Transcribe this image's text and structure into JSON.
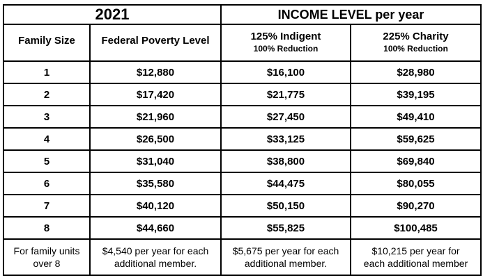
{
  "page": {
    "year_header": "2021",
    "income_header": "INCOME LEVEL per year",
    "columns": {
      "family_size": "Family Size",
      "poverty_level": "Federal Poverty Level",
      "indigent_title": "125% Indigent",
      "indigent_subtitle": "100% Reduction",
      "charity_title": "225% Charity",
      "charity_subtitle": "100% Reduction"
    },
    "rows": [
      {
        "family_size": "1",
        "poverty_level": "$12,880",
        "indigent": "$16,100",
        "charity": "$28,980"
      },
      {
        "family_size": "2",
        "poverty_level": "$17,420",
        "indigent": "$21,775",
        "charity": "$39,195"
      },
      {
        "family_size": "3",
        "poverty_level": "$21,960",
        "indigent": "$27,450",
        "charity": "$49,410"
      },
      {
        "family_size": "4",
        "poverty_level": "$26,500",
        "indigent": "$33,125",
        "charity": "$59,625"
      },
      {
        "family_size": "5",
        "poverty_level": "$31,040",
        "indigent": "$38,800",
        "charity": "$69,840"
      },
      {
        "family_size": "6",
        "poverty_level": "$35,580",
        "indigent": "$44,475",
        "charity": "$80,055"
      },
      {
        "family_size": "7",
        "poverty_level": "$40,120",
        "indigent": "$50,150",
        "charity": "$90,270"
      },
      {
        "family_size": "8",
        "poverty_level": "$44,660",
        "indigent": "$55,825",
        "charity": "$100,485"
      }
    ],
    "footer": {
      "label": [
        "For family units",
        "over 8"
      ],
      "poverty_level": [
        "$4,540 per year for each",
        "additional member."
      ],
      "indigent": [
        "$5,675 per year for each",
        "additional member."
      ],
      "charity": [
        "$10,215 per year for",
        "each additional member"
      ]
    }
  }
}
